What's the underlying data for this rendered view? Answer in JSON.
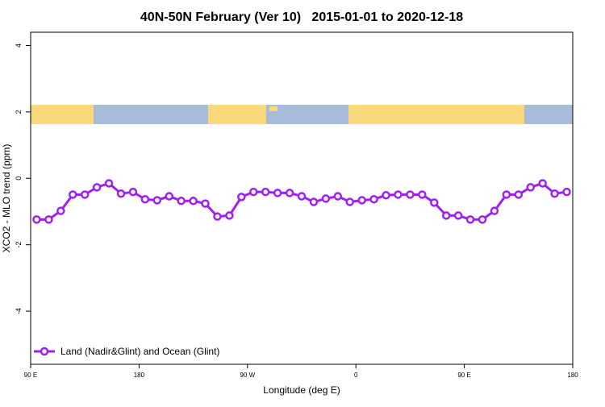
{
  "chart_data": {
    "type": "line",
    "title": "40N-50N February (Ver 10)   2015-01-01 to 2020-12-18",
    "x_label": "Longitude (deg E)",
    "y_label": "XCO2 - MLO trend (ppm)",
    "x": [
      95,
      105,
      115,
      125,
      135,
      145,
      155,
      165,
      175,
      185,
      195,
      205,
      215,
      225,
      235,
      245,
      255,
      265,
      275,
      285,
      295,
      305,
      315,
      325,
      335,
      345,
      355,
      365,
      375,
      385,
      395,
      405,
      415,
      425,
      435,
      445,
      455,
      465,
      475,
      485,
      495,
      505,
      515,
      525,
      535
    ],
    "series": [
      {
        "name": "Land (Nadir&Glint) and Ocean (Glint)",
        "color": "#a020f0",
        "values": [
          -1.24,
          -1.24,
          -0.98,
          -0.49,
          -0.49,
          -0.27,
          -0.15,
          -0.46,
          -0.41,
          -0.63,
          -0.66,
          -0.54,
          -0.68,
          -0.68,
          -0.76,
          -1.15,
          -1.12,
          -0.56,
          -0.41,
          -0.41,
          -0.44,
          -0.44,
          -0.54,
          -0.71,
          -0.61,
          -0.54,
          -0.71,
          -0.66,
          -0.63,
          -0.51,
          -0.49,
          -0.49,
          -0.49,
          -0.73,
          -1.12,
          -1.12,
          -1.24,
          -1.24,
          -0.98,
          -0.49,
          -0.49,
          -0.27,
          -0.15,
          -0.46,
          -0.41
        ]
      }
    ],
    "xlim": [
      90,
      540
    ],
    "xticks": [
      {
        "value": 90,
        "label": "90 E"
      },
      {
        "value": 180,
        "label": "180"
      },
      {
        "value": 270,
        "label": "90 W"
      },
      {
        "value": 360,
        "label": "0"
      },
      {
        "value": 450,
        "label": "90 E"
      },
      {
        "value": 540,
        "label": "180"
      }
    ],
    "ylim": [
      -5.6,
      4.4
    ],
    "yticks": [
      -4,
      -2,
      0,
      2,
      4
    ],
    "legend": "bottom-left"
  }
}
